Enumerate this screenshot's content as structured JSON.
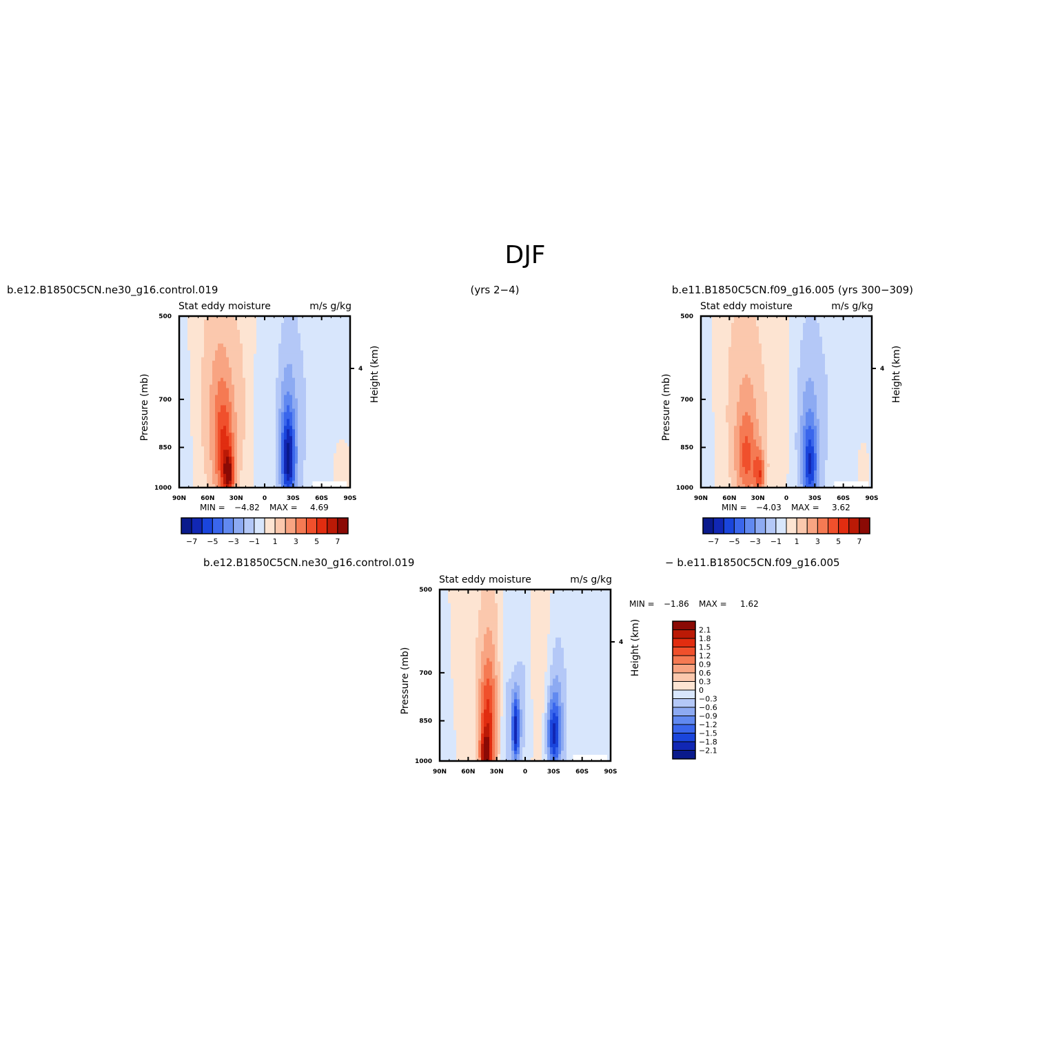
{
  "page_title": "DJF",
  "captions": {
    "top_left": "b.e12.B1850C5CN.ne30_g16.control.019",
    "top_middle": "(yrs 2−4)",
    "top_right": "b.e11.B1850C5CN.f09_g16.005  (yrs 300−309)",
    "bottom_left": "b.e12.B1850C5CN.ne30_g16.control.019",
    "bottom_right": "−  b.e11.B1850C5CN.f09_g16.005"
  },
  "colors": {
    "diverging": [
      "#0a1a8c",
      "#1127b4",
      "#1a45dc",
      "#3a66ec",
      "#6189f0",
      "#8daaf2",
      "#b4c8f7",
      "#d8e6fc",
      "#fde4d2",
      "#fbc8ad",
      "#f8a482",
      "#f57a53",
      "#f0502c",
      "#e12d10",
      "#bb1a06",
      "#8b0a05"
    ]
  },
  "chart_data": [
    {
      "id": "panel-1",
      "type": "heatmap",
      "title": "Stat  eddy  moisture",
      "units": "m/s  g/kg",
      "xlabel": "",
      "ylabel": "Pressure  (mb)",
      "y2label": "Height  (km)",
      "y2ticks": [
        "4"
      ],
      "x_ticks": [
        "90N",
        "60N",
        "30N",
        "0",
        "30S",
        "60S",
        "90S"
      ],
      "y_ticks": [
        "500",
        "700",
        "850",
        "1000"
      ],
      "y_range_mb": [
        1000,
        500
      ],
      "min_label": "MIN  =",
      "min_value": "−4.82",
      "max_label": "MAX  =",
      "max_value": "4.69",
      "colorbar_labels": [
        "−7",
        "−5",
        "−3",
        "−1",
        "1",
        "3",
        "5",
        "7"
      ],
      "field": [
        {
          "lat": 85,
          "p": 800,
          "value": -0.8,
          "wlat": 8,
          "wp": 250
        },
        {
          "lat": 60,
          "p": 650,
          "value": 0.8,
          "wlat": 18,
          "wp": 320
        },
        {
          "lat": 42,
          "p": 860,
          "value": 3.2,
          "wlat": 7,
          "wp": 140
        },
        {
          "lat": 38,
          "p": 950,
          "value": 4.69,
          "wlat": 4,
          "wp": 60
        },
        {
          "lat": 48,
          "p": 780,
          "value": 1.8,
          "wlat": 10,
          "wp": 220
        },
        {
          "lat": 25,
          "p": 720,
          "value": 1.0,
          "wlat": 10,
          "wp": 260
        },
        {
          "lat": 8,
          "p": 780,
          "value": -0.4,
          "wlat": 6,
          "wp": 200
        },
        {
          "lat": -25,
          "p": 900,
          "value": -4.82,
          "wlat": 5,
          "wp": 110
        },
        {
          "lat": -24,
          "p": 820,
          "value": -2.4,
          "wlat": 8,
          "wp": 190
        },
        {
          "lat": -45,
          "p": 720,
          "value": -0.9,
          "wlat": 25,
          "wp": 400
        },
        {
          "lat": -80,
          "p": 950,
          "value": 1.1,
          "wlat": 6,
          "wp": 80
        }
      ]
    },
    {
      "id": "panel-2",
      "type": "heatmap",
      "title": "Stat  eddy  moisture",
      "units": "m/s  g/kg",
      "xlabel": "",
      "ylabel": "Pressure  (mb)",
      "y2label": "Height  (km)",
      "y2ticks": [
        "4"
      ],
      "x_ticks": [
        "90N",
        "60N",
        "30N",
        "0",
        "30S",
        "60S",
        "90S"
      ],
      "y_ticks": [
        "500",
        "700",
        "850",
        "1000"
      ],
      "y_range_mb": [
        1000,
        500
      ],
      "min_label": "MIN  =",
      "min_value": "−4.03",
      "max_label": "MAX  =",
      "max_value": "3.62",
      "colorbar_labels": [
        "−7",
        "−5",
        "−3",
        "−1",
        "1",
        "3",
        "5",
        "7"
      ],
      "field": [
        {
          "lat": 85,
          "p": 750,
          "value": -0.8,
          "wlat": 8,
          "wp": 300
        },
        {
          "lat": 55,
          "p": 650,
          "value": 0.8,
          "wlat": 22,
          "wp": 320
        },
        {
          "lat": 42,
          "p": 900,
          "value": 2.6,
          "wlat": 8,
          "wp": 110
        },
        {
          "lat": 28,
          "p": 950,
          "value": 3.62,
          "wlat": 4,
          "wp": 60
        },
        {
          "lat": 40,
          "p": 780,
          "value": 1.5,
          "wlat": 12,
          "wp": 220
        },
        {
          "lat": 10,
          "p": 720,
          "value": 0.7,
          "wlat": 10,
          "wp": 280
        },
        {
          "lat": -25,
          "p": 920,
          "value": -4.03,
          "wlat": 5,
          "wp": 100
        },
        {
          "lat": -23,
          "p": 820,
          "value": -2.0,
          "wlat": 9,
          "wp": 200
        },
        {
          "lat": -48,
          "p": 720,
          "value": -0.9,
          "wlat": 28,
          "wp": 400
        },
        {
          "lat": -80,
          "p": 930,
          "value": 0.9,
          "wlat": 5,
          "wp": 80
        }
      ]
    },
    {
      "id": "panel-diff",
      "type": "heatmap",
      "title": "Stat  eddy  moisture",
      "units": "m/s  g/kg",
      "xlabel": "",
      "ylabel": "Pressure  (mb)",
      "y2label": "Height  (km)",
      "y2ticks": [
        "4"
      ],
      "x_ticks": [
        "90N",
        "60N",
        "30N",
        "0",
        "30S",
        "60S",
        "90S"
      ],
      "y_ticks": [
        "500",
        "700",
        "850",
        "1000"
      ],
      "y_range_mb": [
        1000,
        500
      ],
      "min_label": "MIN  =",
      "min_value": "−1.86",
      "max_label": "MAX  =",
      "max_value": "1.62",
      "colorbar_labels": [
        "2.1",
        "1.8",
        "1.5",
        "1.2",
        "0.9",
        "0.6",
        "0.3",
        "0",
        "−0.3",
        "−0.6",
        "−0.9",
        "−1.2",
        "−1.5",
        "−1.8",
        "−2.1"
      ],
      "field": [
        {
          "lat": 82,
          "p": 780,
          "value": -0.15,
          "wlat": 8,
          "wp": 300
        },
        {
          "lat": 60,
          "p": 620,
          "value": 0.2,
          "wlat": 18,
          "wp": 250
        },
        {
          "lat": 40,
          "p": 900,
          "value": 1.3,
          "wlat": 6,
          "wp": 160
        },
        {
          "lat": 42,
          "p": 980,
          "value": 1.62,
          "wlat": 3,
          "wp": 50
        },
        {
          "lat": 35,
          "p": 800,
          "value": 0.5,
          "wlat": 9,
          "wp": 250
        },
        {
          "lat": 20,
          "p": 850,
          "value": -0.5,
          "wlat": 5,
          "wp": 200
        },
        {
          "lat": 10,
          "p": 880,
          "value": -1.86,
          "wlat": 3,
          "wp": 90
        },
        {
          "lat": 2,
          "p": 800,
          "value": -0.4,
          "wlat": 6,
          "wp": 200
        },
        {
          "lat": -20,
          "p": 700,
          "value": 0.3,
          "wlat": 10,
          "wp": 300
        },
        {
          "lat": -30,
          "p": 900,
          "value": -1.4,
          "wlat": 5,
          "wp": 90
        },
        {
          "lat": -32,
          "p": 830,
          "value": -0.7,
          "wlat": 8,
          "wp": 200
        },
        {
          "lat": -70,
          "p": 700,
          "value": -0.2,
          "wlat": 20,
          "wp": 400
        }
      ]
    }
  ]
}
